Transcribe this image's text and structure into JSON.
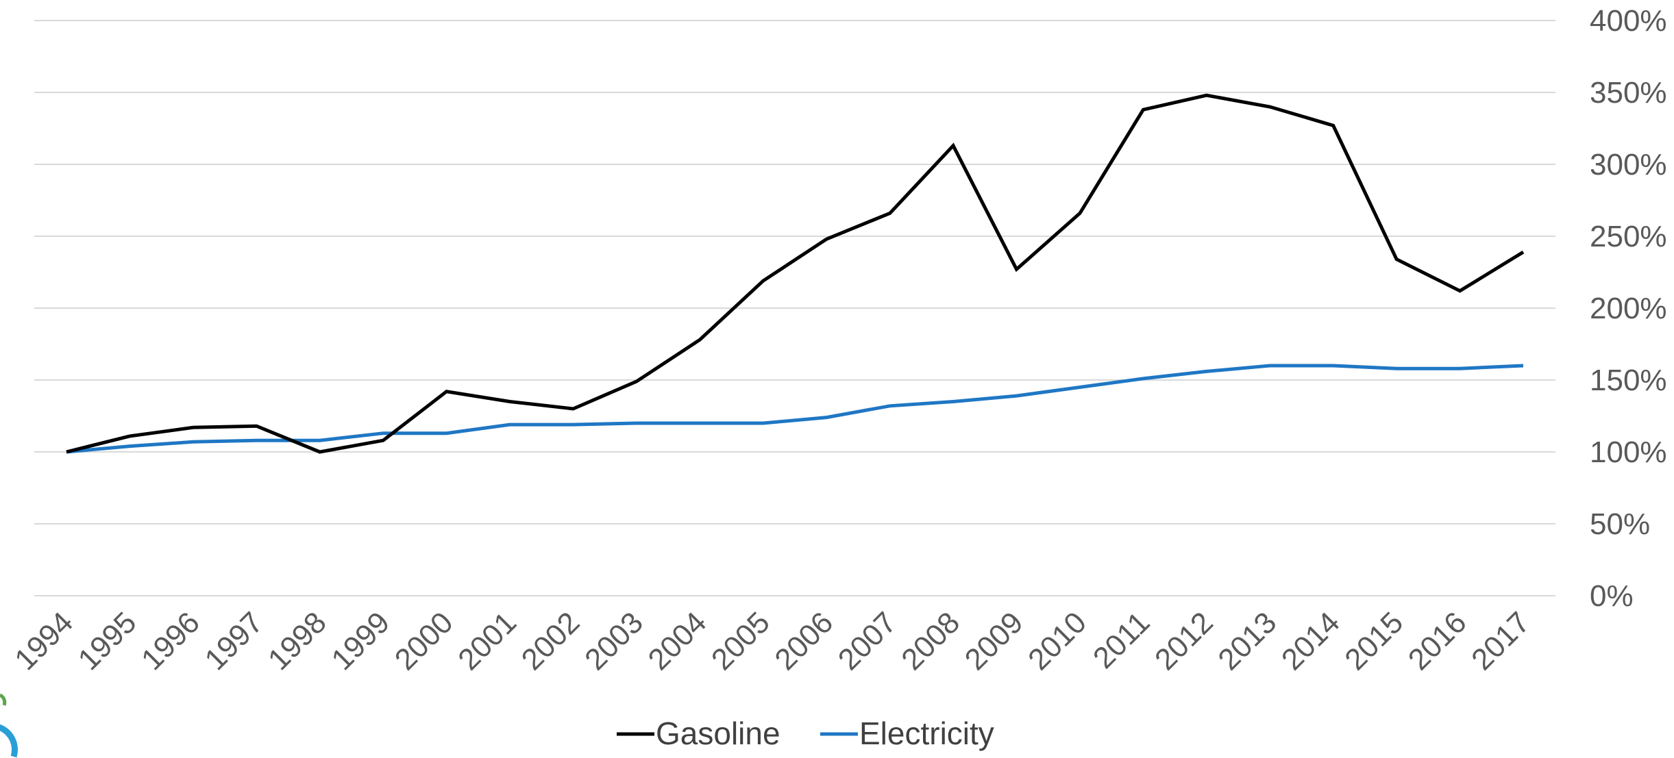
{
  "chart_data": {
    "type": "line",
    "title": "",
    "xlabel": "",
    "ylabel": "",
    "x": [
      "1994",
      "1995",
      "1996",
      "1997",
      "1998",
      "1999",
      "2000",
      "2001",
      "2002",
      "2003",
      "2004",
      "2005",
      "2006",
      "2007",
      "2008",
      "2009",
      "2010",
      "2011",
      "2012",
      "2013",
      "2014",
      "2015",
      "2016",
      "2017"
    ],
    "series": [
      {
        "name": "Gasoline",
        "color": "#000000",
        "values": [
          100,
          111,
          117,
          118,
          100,
          108,
          142,
          135,
          130,
          149,
          178,
          219,
          248,
          266,
          313,
          227,
          266,
          338,
          348,
          340,
          327,
          234,
          212,
          239
        ]
      },
      {
        "name": "Electricity",
        "color": "#1f77c4",
        "values": [
          100,
          104,
          107,
          108,
          108,
          113,
          113,
          119,
          119,
          120,
          120,
          120,
          124,
          132,
          135,
          139,
          145,
          151,
          156,
          160,
          160,
          158,
          158,
          160
        ]
      }
    ],
    "ylim": [
      0,
      400
    ],
    "y_ticks": [
      0,
      50,
      100,
      150,
      200,
      250,
      300,
      350,
      400
    ],
    "y_tick_labels": [
      "0%",
      "50%",
      "100%",
      "150%",
      "200%",
      "250%",
      "300%",
      "350%",
      "400%"
    ],
    "y_axis_side": "right",
    "grid": true,
    "legend_position": "bottom-center"
  }
}
